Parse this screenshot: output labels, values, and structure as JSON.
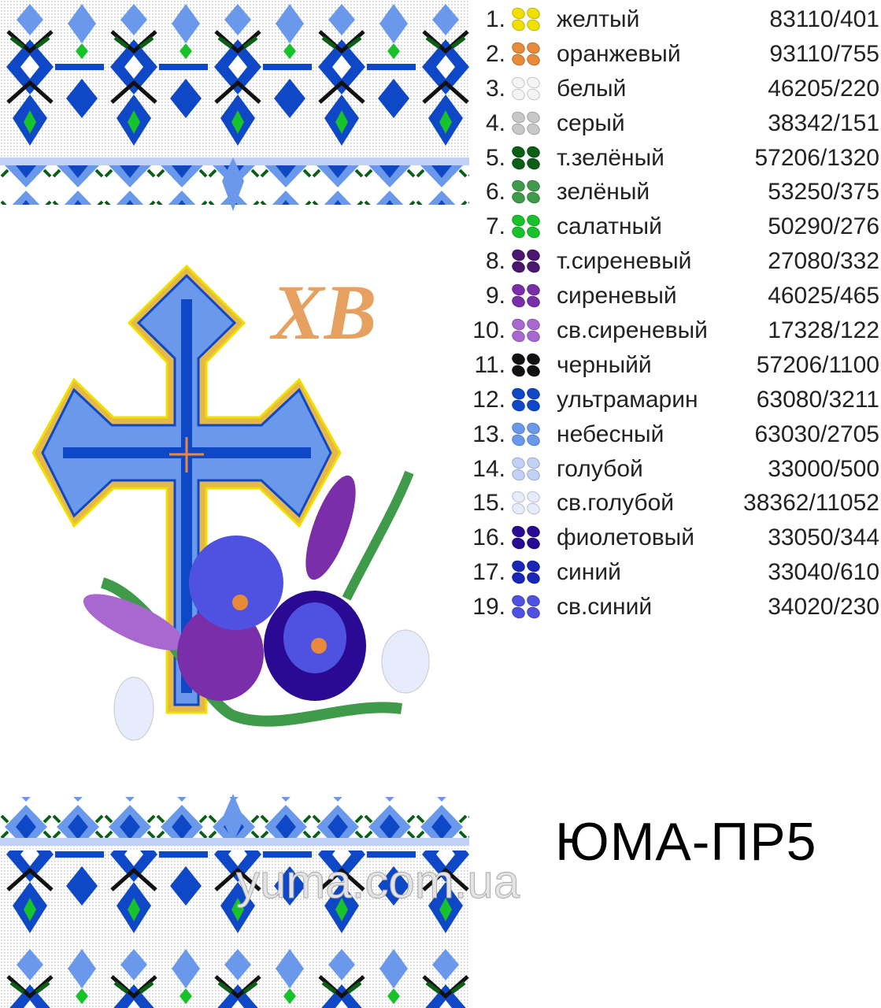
{
  "legend": [
    {
      "num": "1.",
      "name": "желтый",
      "code": "83110/401",
      "color": "#f0e000"
    },
    {
      "num": "2.",
      "name": "оранжевый",
      "code": "93110/755",
      "color": "#e88a3a"
    },
    {
      "num": "3.",
      "name": "белый",
      "code": "46205/220",
      "color": "#f4f4f4"
    },
    {
      "num": "4.",
      "name": "серый",
      "code": "38342/151",
      "color": "#c8c8c8"
    },
    {
      "num": "5.",
      "name": "т.зелёный",
      "code": "57206/1320",
      "color": "#0b5e16"
    },
    {
      "num": "6.",
      "name": "зелёный",
      "code": "53250/375",
      "color": "#3f9a4a"
    },
    {
      "num": "7.",
      "name": "салатный",
      "code": "50290/276",
      "color": "#18c22a"
    },
    {
      "num": "8.",
      "name": "т.сиреневый",
      "code": "27080/332",
      "color": "#4a1670"
    },
    {
      "num": "9.",
      "name": "сиреневый",
      "code": "46025/465",
      "color": "#7a2eaa"
    },
    {
      "num": "10.",
      "name": "св.сиреневый",
      "code": "17328/122",
      "color": "#a868d0"
    },
    {
      "num": "11.",
      "name": "черныйй",
      "code": "57206/1100",
      "color": "#111111"
    },
    {
      "num": "12.",
      "name": "ультрамарин",
      "code": "63080/3211",
      "color": "#0f48c6"
    },
    {
      "num": "13.",
      "name": "небесный",
      "code": "63030/2705",
      "color": "#6a98ea"
    },
    {
      "num": "14.",
      "name": "голубой",
      "code": "33000/500",
      "color": "#c2d2f6"
    },
    {
      "num": "15.",
      "name": "св.голубой",
      "code": "38362/11052",
      "color": "#e6ecfb"
    },
    {
      "num": "16.",
      "name": "фиолетовый",
      "code": "33050/344",
      "color": "#2a0a94"
    },
    {
      "num": "17.",
      "name": "синий",
      "code": "33040/610",
      "color": "#1a26b8"
    },
    {
      "num": "19.",
      "name": "св.синий",
      "code": "34020/230",
      "color": "#4f52e0"
    }
  ],
  "title": "ЮМА-ПР5",
  "monogram": "ХВ",
  "watermark": "yuma.com.ua"
}
